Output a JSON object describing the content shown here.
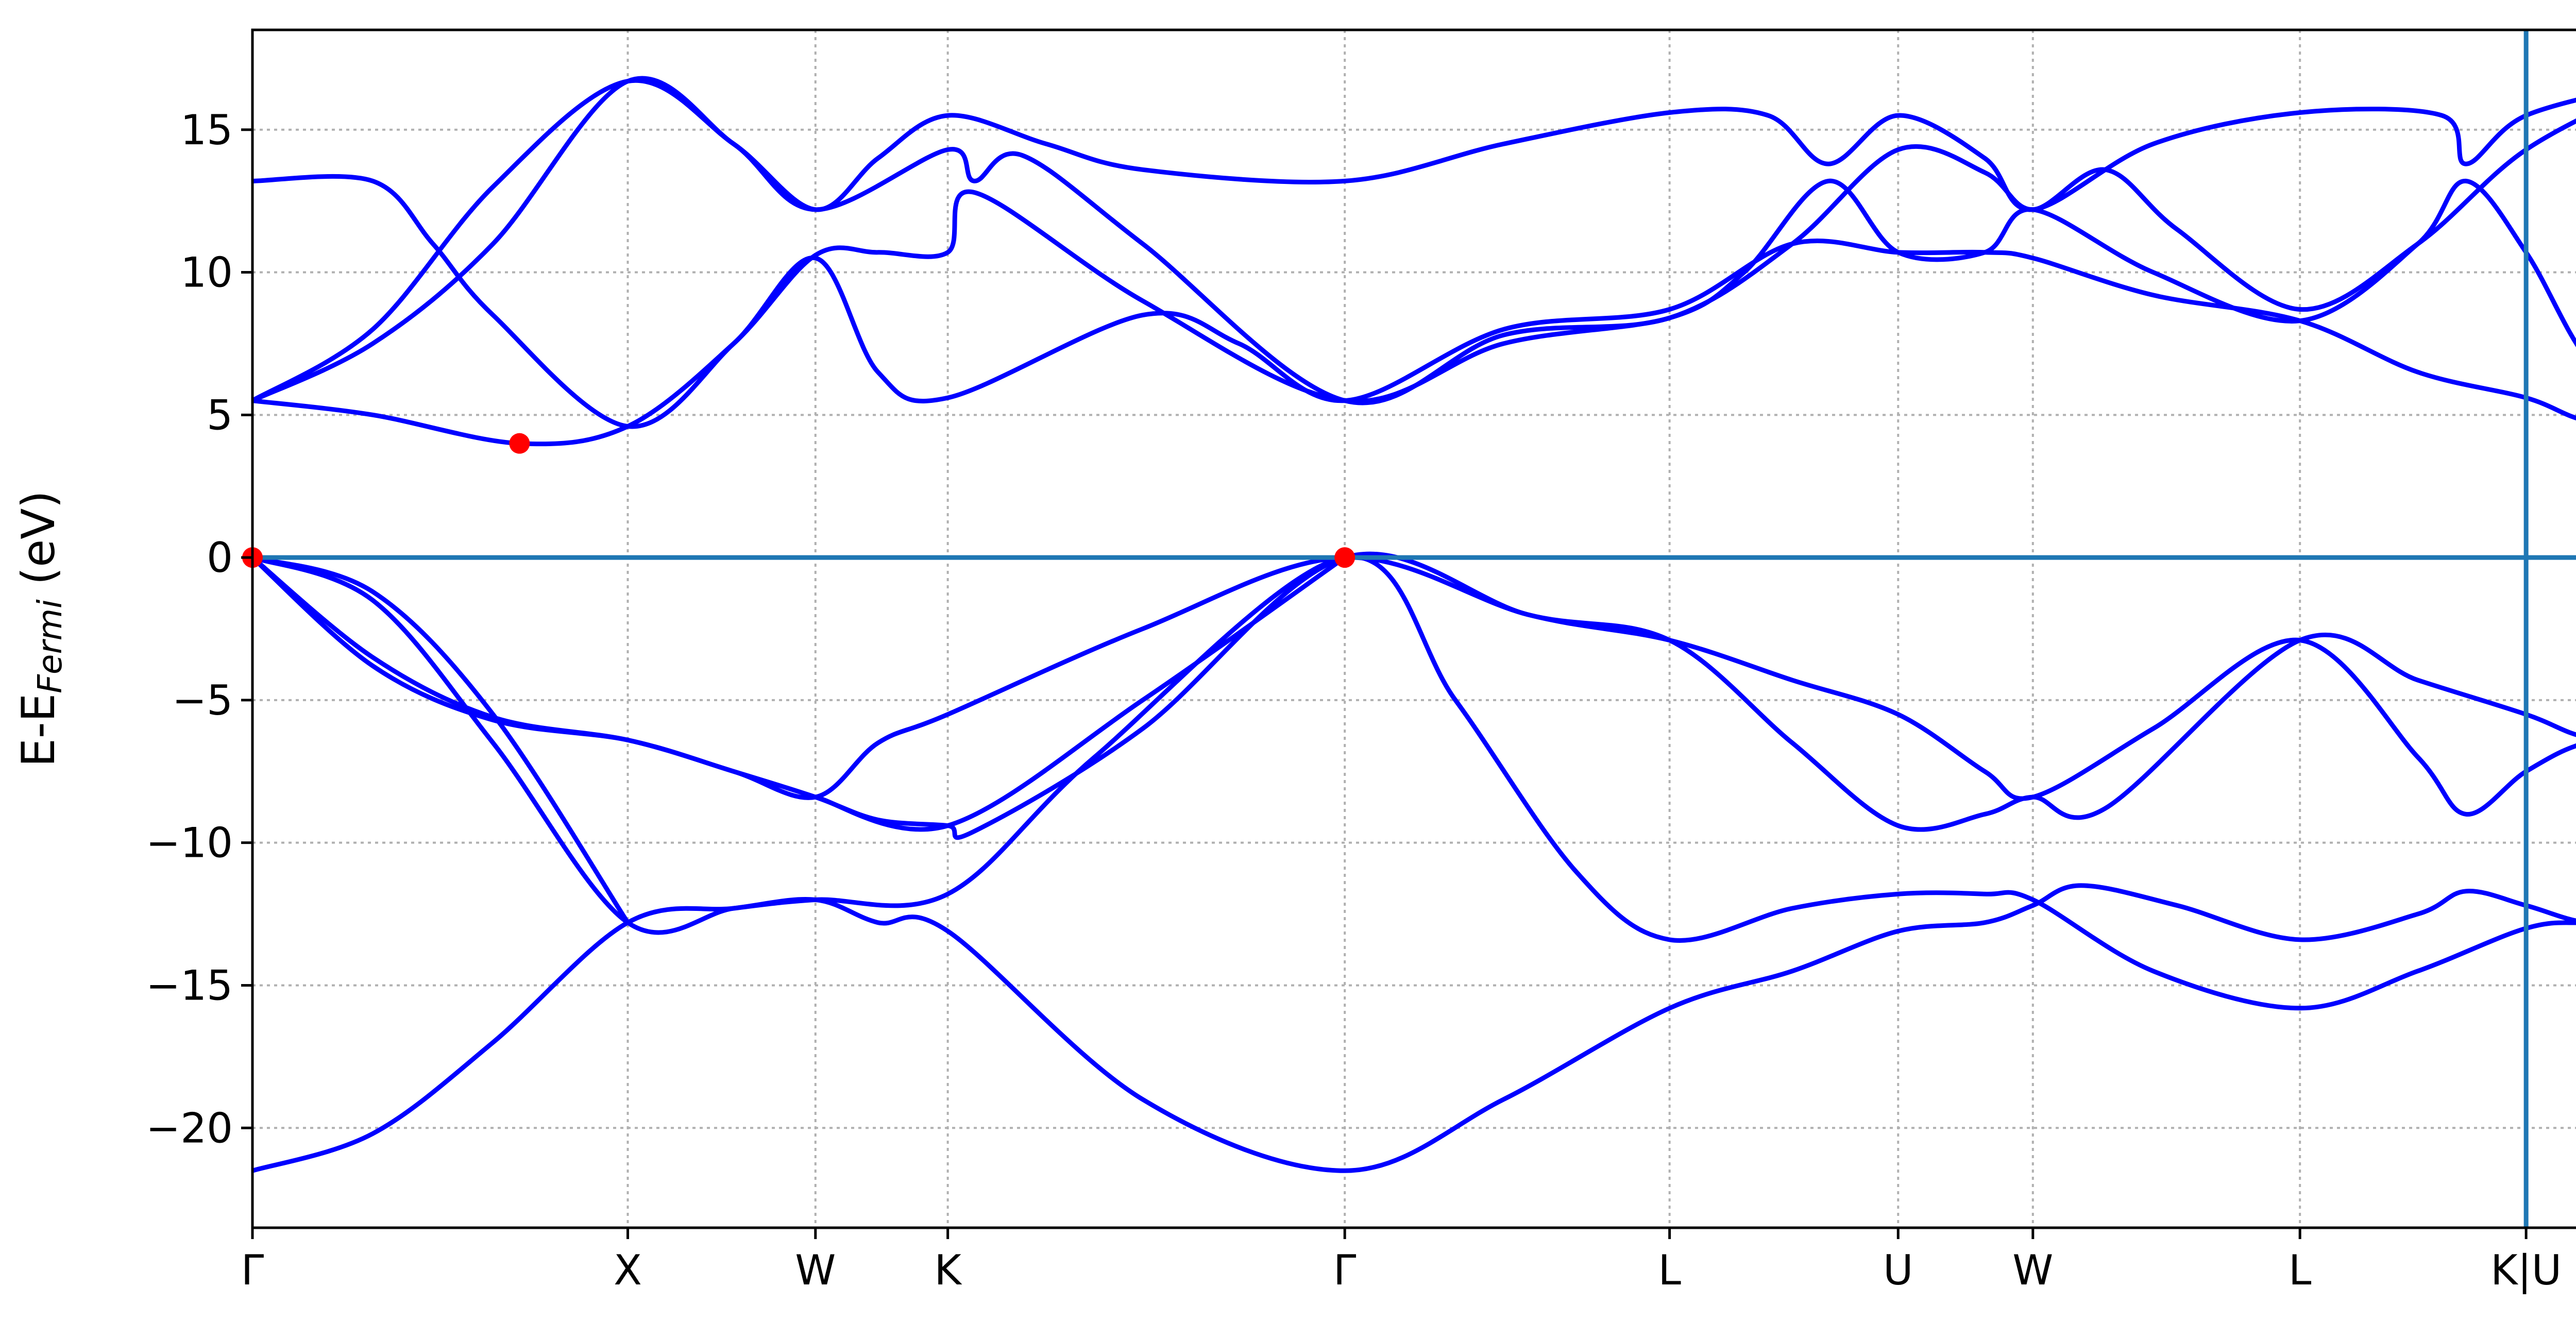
{
  "chart_data": {
    "type": "line",
    "ylabel": "E-E",
    "ylabel_sub": "Fermi",
    "ylabel_unit": " (eV)",
    "ylim": [
      -23.5,
      18.5
    ],
    "grid": true,
    "x_ticks": [
      {
        "label": "Γ",
        "x": 0.0
      },
      {
        "label": "X",
        "x": 0.156
      },
      {
        "label": "W",
        "x": 0.234
      },
      {
        "label": "K",
        "x": 0.289
      },
      {
        "label": "Γ",
        "x": 0.454
      },
      {
        "label": "L",
        "x": 0.589
      },
      {
        "label": "U",
        "x": 0.684
      },
      {
        "label": "W",
        "x": 0.74
      },
      {
        "label": "L",
        "x": 0.851
      },
      {
        "label": "K|U",
        "x": 0.945
      }
    ],
    "x_end": 1.0,
    "y_ticks": [
      15,
      10,
      5,
      0,
      -5,
      -10,
      -15,
      -20
    ],
    "y_tick_labels": [
      "15",
      "10",
      "5",
      "0",
      "−5",
      "−10",
      "−15",
      "−20"
    ],
    "fermi_level": 0,
    "vertical_line_x": 0.945,
    "bands": [
      {
        "points": [
          [
            0.0,
            -21.5
          ],
          [
            0.05,
            -20.2
          ],
          [
            0.1,
            -17
          ],
          [
            0.156,
            -12.8
          ],
          [
            0.2,
            -12.3
          ],
          [
            0.234,
            -12.0
          ],
          [
            0.289,
            -11.8
          ],
          [
            0.35,
            -7
          ],
          [
            0.454,
            0
          ],
          [
            0.5,
            -5
          ],
          [
            0.55,
            -11
          ],
          [
            0.589,
            -13.4
          ],
          [
            0.64,
            -12.3
          ],
          [
            0.684,
            -11.8
          ],
          [
            0.72,
            -11.8
          ],
          [
            0.74,
            -12.0
          ],
          [
            0.79,
            -14.5
          ],
          [
            0.851,
            -15.8
          ],
          [
            0.9,
            -14.5
          ],
          [
            0.945,
            -13.0
          ],
          [
            0.97,
            -12.8
          ],
          [
            1.0,
            -12.8
          ]
        ]
      },
      {
        "points": [
          [
            0.0,
            0
          ],
          [
            0.05,
            -1.5
          ],
          [
            0.1,
            -6.5
          ],
          [
            0.156,
            -12.8
          ],
          [
            0.2,
            -12.3
          ],
          [
            0.234,
            -12.0
          ],
          [
            0.26,
            -12.8
          ],
          [
            0.289,
            -13.1
          ],
          [
            0.37,
            -19
          ],
          [
            0.454,
            -21.5
          ],
          [
            0.52,
            -19
          ],
          [
            0.589,
            -15.8
          ],
          [
            0.64,
            -14.5
          ],
          [
            0.684,
            -13.1
          ],
          [
            0.72,
            -12.8
          ],
          [
            0.74,
            -12.2
          ],
          [
            0.76,
            -11.5
          ],
          [
            0.8,
            -12.2
          ],
          [
            0.851,
            -13.4
          ],
          [
            0.9,
            -12.5
          ],
          [
            0.92,
            -11.7
          ],
          [
            0.945,
            -12.2
          ],
          [
            0.97,
            -12.8
          ],
          [
            1.0,
            -12.8
          ]
        ]
      },
      {
        "points": [
          [
            0.0,
            0
          ],
          [
            0.05,
            -3.8
          ],
          [
            0.1,
            -5.7
          ],
          [
            0.156,
            -6.4
          ],
          [
            0.2,
            -7.5
          ],
          [
            0.234,
            -8.4
          ],
          [
            0.26,
            -9.2
          ],
          [
            0.289,
            -9.4
          ],
          [
            0.3,
            -9.6
          ],
          [
            0.37,
            -6
          ],
          [
            0.454,
            0
          ],
          [
            0.53,
            -2
          ],
          [
            0.589,
            -2.9
          ],
          [
            0.64,
            -4.3
          ],
          [
            0.684,
            -5.5
          ],
          [
            0.72,
            -7.5
          ],
          [
            0.74,
            -8.4
          ],
          [
            0.79,
            -6
          ],
          [
            0.851,
            -2.9
          ],
          [
            0.9,
            -7
          ],
          [
            0.92,
            -9.0
          ],
          [
            0.945,
            -7.5
          ],
          [
            0.97,
            -6.5
          ],
          [
            1.0,
            -6.4
          ]
        ]
      },
      {
        "points": [
          [
            0.0,
            0
          ],
          [
            0.05,
            -3.5
          ],
          [
            0.1,
            -5.6
          ],
          [
            0.156,
            -6.4
          ],
          [
            0.2,
            -7.5
          ],
          [
            0.234,
            -8.4
          ],
          [
            0.26,
            -6.5
          ],
          [
            0.289,
            -5.5
          ],
          [
            0.37,
            -2.5
          ],
          [
            0.454,
            0
          ],
          [
            0.53,
            -2
          ],
          [
            0.589,
            -2.9
          ],
          [
            0.64,
            -6.5
          ],
          [
            0.684,
            -9.4
          ],
          [
            0.72,
            -9
          ],
          [
            0.74,
            -8.4
          ],
          [
            0.77,
            -8.8
          ],
          [
            0.851,
            -2.9
          ],
          [
            0.9,
            -4.3
          ],
          [
            0.945,
            -5.5
          ],
          [
            0.97,
            -6.3
          ],
          [
            1.0,
            -6.4
          ]
        ]
      },
      {
        "points": [
          [
            0.0,
            0
          ],
          [
            0.05,
            -1.2
          ],
          [
            0.1,
            -5.5
          ],
          [
            0.156,
            -12.8
          ]
        ]
      },
      {
        "points": [
          [
            0.234,
            -8.4
          ],
          [
            0.289,
            -9.4
          ],
          [
            0.37,
            -5
          ],
          [
            0.454,
            0
          ]
        ]
      },
      {
        "points": [
          [
            0.0,
            5.5
          ],
          [
            0.05,
            5.0
          ],
          [
            0.111,
            4.0
          ],
          [
            0.156,
            4.6
          ],
          [
            0.2,
            7.5
          ],
          [
            0.234,
            10.5
          ],
          [
            0.26,
            6.5
          ],
          [
            0.289,
            5.6
          ],
          [
            0.37,
            8.5
          ],
          [
            0.41,
            7.5
          ],
          [
            0.454,
            5.5
          ],
          [
            0.52,
            8
          ],
          [
            0.589,
            8.7
          ],
          [
            0.64,
            11
          ],
          [
            0.684,
            10.7
          ],
          [
            0.72,
            10.7
          ],
          [
            0.74,
            10.5
          ],
          [
            0.79,
            9.2
          ],
          [
            0.851,
            8.3
          ],
          [
            0.9,
            6.5
          ],
          [
            0.945,
            5.6
          ],
          [
            0.97,
            4.8
          ],
          [
            1.0,
            4.7
          ]
        ]
      },
      {
        "points": [
          [
            0.0,
            5.5
          ],
          [
            0.05,
            7.5
          ],
          [
            0.1,
            11
          ],
          [
            0.156,
            16.7
          ],
          [
            0.2,
            14.5
          ],
          [
            0.234,
            12.2
          ],
          [
            0.26,
            14
          ],
          [
            0.289,
            15.5
          ],
          [
            0.33,
            14.5
          ],
          [
            0.37,
            13.6
          ],
          [
            0.454,
            13.2
          ],
          [
            0.52,
            14.5
          ],
          [
            0.589,
            15.6
          ],
          [
            0.63,
            15.5
          ],
          [
            0.655,
            13.8
          ],
          [
            0.684,
            15.5
          ],
          [
            0.72,
            14
          ],
          [
            0.74,
            12.2
          ],
          [
            0.79,
            14.5
          ],
          [
            0.851,
            15.6
          ],
          [
            0.91,
            15.5
          ],
          [
            0.92,
            13.8
          ],
          [
            0.945,
            15.5
          ],
          [
            1.0,
            16.7
          ]
        ]
      },
      {
        "points": [
          [
            0.0,
            13.2
          ],
          [
            0.05,
            13.2
          ],
          [
            0.075,
            11
          ],
          [
            0.1,
            8.5
          ],
          [
            0.156,
            4.6
          ],
          [
            0.2,
            7.5
          ],
          [
            0.234,
            10.6
          ],
          [
            0.26,
            10.7
          ],
          [
            0.289,
            10.7
          ],
          [
            0.3,
            12.8
          ],
          [
            0.37,
            9
          ],
          [
            0.454,
            5.5
          ],
          [
            0.52,
            7.5
          ],
          [
            0.589,
            8.4
          ],
          [
            0.62,
            10
          ],
          [
            0.655,
            13.2
          ],
          [
            0.684,
            10.7
          ],
          [
            0.72,
            10.7
          ],
          [
            0.74,
            12.2
          ],
          [
            0.79,
            10
          ],
          [
            0.851,
            8.3
          ],
          [
            0.9,
            11
          ],
          [
            0.92,
            13.2
          ],
          [
            0.945,
            10.7
          ],
          [
            0.97,
            7
          ],
          [
            1.0,
            4.7
          ]
        ]
      },
      {
        "points": [
          [
            0.0,
            5.5
          ],
          [
            0.05,
            8
          ],
          [
            0.1,
            13
          ],
          [
            0.156,
            16.7
          ],
          [
            0.2,
            14.5
          ],
          [
            0.234,
            12.2
          ],
          [
            0.289,
            14.3
          ],
          [
            0.3,
            13.2
          ],
          [
            0.32,
            14.1
          ],
          [
            0.37,
            11
          ],
          [
            0.454,
            5.5
          ],
          [
            0.52,
            7.8
          ],
          [
            0.589,
            8.4
          ],
          [
            0.64,
            11
          ],
          [
            0.684,
            14.3
          ],
          [
            0.72,
            13.5
          ],
          [
            0.74,
            12.2
          ],
          [
            0.77,
            13.6
          ],
          [
            0.8,
            11.5
          ],
          [
            0.851,
            8.7
          ],
          [
            0.9,
            11
          ],
          [
            0.945,
            14.3
          ],
          [
            1.0,
            16.7
          ]
        ]
      }
    ],
    "highlight_points": [
      [
        0.0,
        0
      ],
      [
        0.111,
        4.0
      ],
      [
        0.454,
        0
      ]
    ],
    "colors": {
      "band": "#0000ff",
      "fermi": "#1f77b4",
      "vline": "#1f77b4",
      "highlight": "#ff0000",
      "grid": "#b0b0b0",
      "axes": "#000000"
    }
  }
}
